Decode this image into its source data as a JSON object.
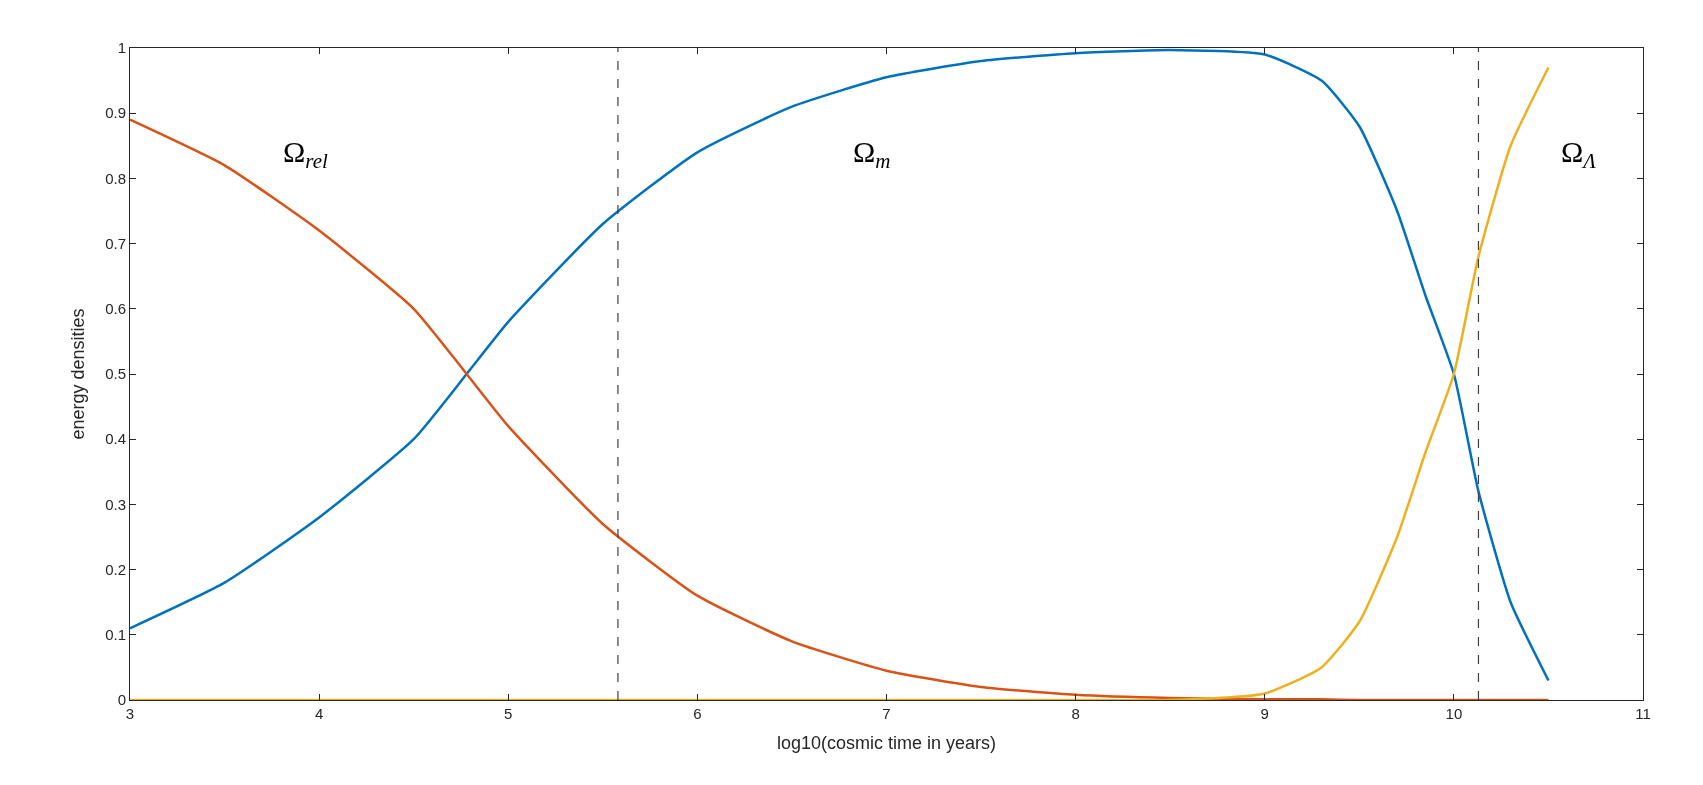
{
  "chart_data": {
    "type": "line",
    "xlabel": "log10(cosmic time in years)",
    "ylabel": "energy densities",
    "x": [
      3,
      3.5,
      4,
      4.5,
      4.78,
      5,
      5.5,
      6,
      6.5,
      7,
      7.5,
      8,
      8.5,
      9,
      9.3,
      9.5,
      9.7,
      9.85,
      10,
      10.13,
      10.3,
      10.5
    ],
    "series": [
      {
        "name": "Ω$_{m}$",
        "color": "#0072bd",
        "values": [
          0.11,
          0.18,
          0.28,
          0.4,
          0.5,
          0.58,
          0.73,
          0.84,
          0.91,
          0.955,
          0.98,
          0.992,
          0.997,
          0.99,
          0.95,
          0.88,
          0.75,
          0.62,
          0.5,
          0.32,
          0.15,
          0.03
        ]
      },
      {
        "name": "Ω$_{rel}$",
        "color": "#d95319",
        "values": [
          0.89,
          0.82,
          0.72,
          0.6,
          0.5,
          0.42,
          0.27,
          0.16,
          0.09,
          0.045,
          0.02,
          0.008,
          0.003,
          0.001,
          0.001,
          0,
          0,
          0,
          0,
          0,
          0,
          0
        ]
      },
      {
        "name": "Ω$_{Λ}$",
        "color": "#edb120",
        "values": [
          0,
          0,
          0,
          0,
          0,
          0,
          0,
          0,
          0,
          0,
          0,
          0,
          0,
          0.01,
          0.05,
          0.12,
          0.25,
          0.38,
          0.5,
          0.68,
          0.85,
          0.97
        ]
      }
    ],
    "xlim": [
      3,
      11
    ],
    "xticks": [
      3,
      4,
      5,
      6,
      7,
      8,
      9,
      10,
      11
    ],
    "ylim": [
      0,
      1
    ],
    "yticks": [
      0,
      0.1,
      0.2,
      0.3,
      0.4,
      0.5,
      0.6,
      0.7,
      0.8,
      0.9,
      1
    ],
    "ref_lines": [
      {
        "axis": "x",
        "value": 5.58,
        "color": "#404040",
        "line_style": "dashed"
      },
      {
        "axis": "x",
        "value": 10.13,
        "color": "#404040",
        "line_style": "dashed"
      }
    ],
    "grid": false,
    "legend": false,
    "marker": "none",
    "line_style": "solid"
  }
}
